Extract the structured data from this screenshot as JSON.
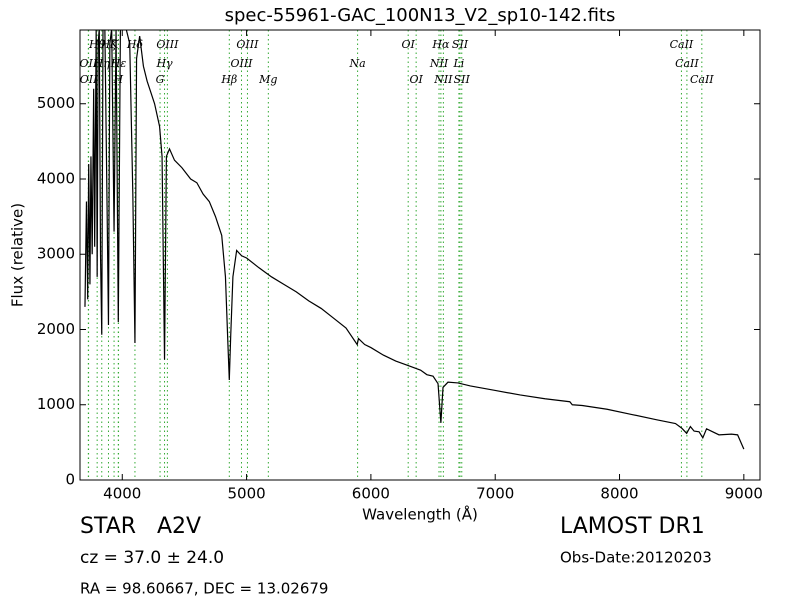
{
  "chart_data": {
    "type": "line",
    "title": "spec-55961-GAC_100N13_V2_sp10-142.fits",
    "x_label": "Wavelength (Å)",
    "y_label": "Flux (relative)",
    "xlim": [
      3660,
      9130
    ],
    "ylim": [
      0,
      5980
    ],
    "xticks": [
      4000,
      5000,
      6000,
      7000,
      8000,
      9000
    ],
    "yticks": [
      0,
      1000,
      2000,
      3000,
      4000,
      5000
    ],
    "x": [
      3700,
      3712,
      3722,
      3730,
      3740,
      3748,
      3758,
      3770,
      3778,
      3790,
      3798,
      3806,
      3815,
      3825,
      3835,
      3845,
      3860,
      3875,
      3889,
      3900,
      3915,
      3934,
      3950,
      3968,
      3985,
      4000,
      4030,
      4060,
      4085,
      4102,
      4115,
      4140,
      4170,
      4200,
      4230,
      4260,
      4300,
      4320,
      4340,
      4355,
      4380,
      4420,
      4480,
      4550,
      4600,
      4650,
      4700,
      4750,
      4800,
      4830,
      4850,
      4861,
      4872,
      4890,
      4920,
      4960,
      5000,
      5100,
      5200,
      5300,
      5400,
      5500,
      5600,
      5700,
      5800,
      5890,
      5900,
      5950,
      6000,
      6100,
      6200,
      6300,
      6400,
      6450,
      6500,
      6540,
      6563,
      6580,
      6620,
      6700,
      6800,
      6900,
      7000,
      7200,
      7400,
      7600,
      7620,
      7700,
      7900,
      8100,
      8300,
      8450,
      8500,
      8540,
      8570,
      8600,
      8640,
      8670,
      8700,
      8800,
      8900,
      8950,
      9000
    ],
    "series": [
      {
        "name": "spectrum",
        "color": "#000000",
        "values": [
          2300,
          3700,
          2400,
          4200,
          2600,
          4300,
          3000,
          5200,
          3100,
          6000,
          2700,
          5800,
          6000,
          3000,
          1930,
          6000,
          6000,
          4000,
          2060,
          5800,
          6000,
          3300,
          6000,
          2100,
          6000,
          6000,
          6000,
          5800,
          3800,
          1820,
          5600,
          5900,
          5500,
          5300,
          5150,
          5000,
          4700,
          4300,
          1600,
          4300,
          4400,
          4250,
          4150,
          4000,
          3950,
          3800,
          3700,
          3500,
          3250,
          2700,
          1800,
          1330,
          1900,
          2700,
          3050,
          2980,
          2950,
          2820,
          2700,
          2600,
          2500,
          2380,
          2280,
          2150,
          2020,
          1800,
          1880,
          1800,
          1760,
          1660,
          1580,
          1520,
          1460,
          1400,
          1380,
          1280,
          760,
          1230,
          1300,
          1290,
          1250,
          1220,
          1190,
          1130,
          1080,
          1040,
          1000,
          990,
          940,
          870,
          800,
          750,
          690,
          620,
          710,
          650,
          640,
          560,
          680,
          600,
          610,
          600,
          410
        ]
      }
    ],
    "line_color": "#33aa33",
    "spectral_lines": [
      [
        {
          "wavelength": 3798,
          "label": "Hθ"
        },
        {
          "wavelength": 3889,
          "label": "Hζ"
        },
        {
          "wavelength": 3934,
          "label": "K"
        },
        {
          "wavelength": 4102,
          "label": "Hδ"
        },
        {
          "wavelength": 4363,
          "label": "OIII"
        },
        {
          "wavelength": 5007,
          "label": "OIII"
        },
        {
          "wavelength": 6300,
          "label": "OI"
        },
        {
          "wavelength": 6563,
          "label": "Hα"
        },
        {
          "wavelength": 6717,
          "label": "SII"
        },
        {
          "wavelength": 8498,
          "label": "CaII"
        }
      ],
      [
        {
          "wavelength": 3727,
          "label": "OII"
        },
        {
          "wavelength": 3835,
          "label": "Hη"
        },
        {
          "wavelength": 3970,
          "label": "Hε"
        },
        {
          "wavelength": 4340,
          "label": "Hγ"
        },
        {
          "wavelength": 4959,
          "label": "OIII"
        },
        {
          "wavelength": 5893,
          "label": "Na"
        },
        {
          "wavelength": 6548,
          "label": "NII"
        },
        {
          "wavelength": 6708,
          "label": "Li"
        },
        {
          "wavelength": 8542,
          "label": "CaII"
        }
      ],
      [
        {
          "wavelength": 3729,
          "label": "OII"
        },
        {
          "wavelength": 3968,
          "label": "H"
        },
        {
          "wavelength": 4304,
          "label": "G"
        },
        {
          "wavelength": 4861,
          "label": "Hβ"
        },
        {
          "wavelength": 5175,
          "label": "Mg"
        },
        {
          "wavelength": 6364,
          "label": "OI"
        },
        {
          "wavelength": 6583,
          "label": "NII"
        },
        {
          "wavelength": 6731,
          "label": "SII"
        },
        {
          "wavelength": 8662,
          "label": "CaII"
        }
      ]
    ],
    "annotations": {
      "class": "STAR   A2V",
      "cz": "cz = 37.0 ± 24.0",
      "coords": "RA = 98.60667, DEC = 13.02679",
      "survey": "LAMOST DR1",
      "obs_date": "Obs-Date:20120203"
    }
  }
}
